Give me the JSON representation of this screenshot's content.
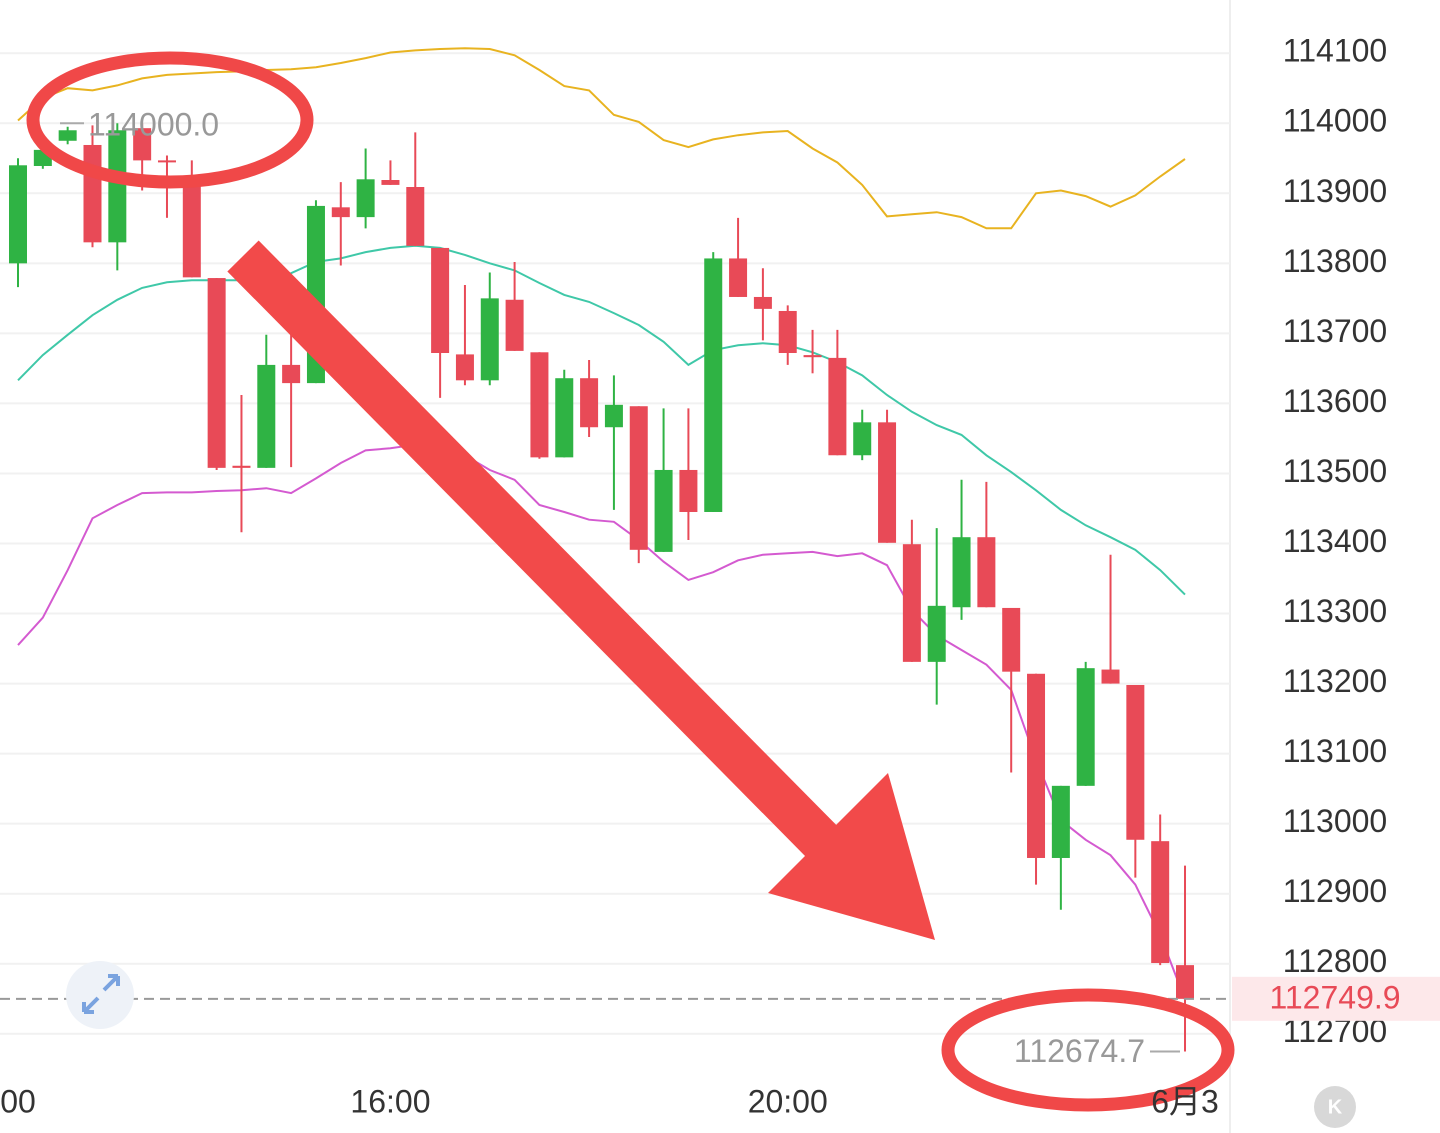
{
  "chart_data": {
    "type": "candlestick",
    "up_color": "#2fb344",
    "down_color": "#e84a57",
    "categories": [
      "00",
      null,
      null,
      null,
      null,
      null,
      null,
      null,
      null,
      null,
      null,
      null,
      null,
      null,
      null,
      "16:00",
      null,
      null,
      null,
      null,
      null,
      null,
      null,
      null,
      null,
      null,
      null,
      null,
      null,
      null,
      null,
      "20:00",
      null,
      null,
      null,
      null,
      null,
      null,
      null,
      null,
      null,
      null,
      null,
      null,
      null,
      null,
      null,
      "6月3"
    ],
    "open": [
      113800,
      113939,
      113975,
      113969,
      113830,
      113993,
      113947,
      113912,
      113779,
      113511,
      113508,
      113655,
      113629,
      113880,
      113866,
      113919,
      113909,
      113822,
      113670,
      113633,
      113748,
      113673,
      113523,
      113636,
      113566,
      113596,
      113388,
      113505,
      113445,
      113807,
      113752,
      113732,
      113669,
      113665,
      113526,
      113573,
      113399,
      113231,
      113309,
      113409,
      113308,
      113214,
      112951,
      113054,
      113220,
      113198,
      112975,
      112798
    ],
    "high": [
      113950,
      113965,
      113995,
      113997,
      114000,
      114000,
      113954,
      113947,
      113779,
      113612,
      113698,
      113705,
      113890,
      113916,
      113964,
      113947,
      113987,
      113822,
      113769,
      113787,
      113802,
      113673,
      113648,
      113662,
      113640,
      113596,
      113593,
      113593,
      113816,
      113865,
      113793,
      113740,
      113705,
      113705,
      113591,
      113591,
      113434,
      113422,
      113491,
      113488,
      113308,
      113214,
      113054,
      113231,
      113384,
      113198,
      113013,
      112940
    ],
    "low": [
      113766,
      113935,
      113970,
      113823,
      113790,
      113904,
      113865,
      113780,
      113505,
      113416,
      113508,
      113509,
      113629,
      113797,
      113850,
      113912,
      113825,
      113608,
      113626,
      113626,
      113675,
      113521,
      113523,
      113552,
      113448,
      113372,
      113388,
      113405,
      113445,
      113752,
      113690,
      113655,
      113643,
      113526,
      113519,
      113401,
      113231,
      113170,
      113291,
      113309,
      113073,
      112913,
      112877,
      113054,
      113200,
      112923,
      112798,
      112674.7
    ],
    "close": [
      113940,
      113962,
      113990,
      113830,
      113990,
      113947,
      113945,
      113780,
      113508,
      113508,
      113655,
      113629,
      113882,
      113866,
      113920,
      113912,
      113825,
      113672,
      113633,
      113750,
      113675,
      113523,
      113636,
      113566,
      113598,
      113391,
      113505,
      113445,
      113807,
      113752,
      113735,
      113672,
      113666,
      113526,
      113573,
      113401,
      113231,
      113311,
      113409,
      113309,
      113217,
      112951,
      113054,
      113222,
      113200,
      112977,
      112801,
      112749.9
    ],
    "bands": [
      {
        "color": "#e8b320",
        "values": [
          114004,
          114036,
          114050,
          114047,
          114054,
          114064,
          114069,
          114071,
          114073,
          114074,
          114076,
          114077,
          114080,
          114086,
          114093,
          114101,
          114104,
          114106,
          114107,
          114106,
          114097,
          114076,
          114053,
          114047,
          114012,
          114002,
          113976,
          113966,
          113977,
          113983,
          113987,
          113989,
          113964,
          113944,
          113912,
          113867,
          113870,
          113873,
          113866,
          113850,
          113850,
          113900,
          113904,
          113896,
          113881,
          113897,
          113924,
          113949
        ]
      },
      {
        "color": "#3fc8a8",
        "values": [
          113633,
          113669,
          113698,
          113726,
          113748,
          113765,
          113773,
          113776,
          113776,
          113776,
          113776,
          113786,
          113802,
          113807,
          113816,
          113822,
          113825,
          113822,
          113812,
          113800,
          113790,
          113772,
          113755,
          113745,
          113729,
          113712,
          113688,
          113655,
          113676,
          113683,
          113686,
          113683,
          113673,
          113659,
          113640,
          113612,
          113588,
          113569,
          113555,
          113526,
          113502,
          113476,
          113448,
          113426,
          113409,
          113391,
          113362,
          113327
        ]
      },
      {
        "color": "#d45ad0",
        "values": [
          113255,
          113294,
          113362,
          113436,
          113455,
          113472,
          113473,
          113473,
          113475,
          113476,
          113479,
          113472,
          113493,
          113515,
          113533,
          113536,
          113541,
          113548,
          113526,
          113505,
          113491,
          113455,
          113445,
          113434,
          113431,
          113405,
          113374,
          113348,
          113359,
          113376,
          113384,
          113386,
          113388,
          113382,
          113386,
          113369,
          113305,
          113269,
          113248,
          113227,
          113191,
          113091,
          113005,
          112977,
          112955,
          112913,
          112841,
          112749
        ]
      }
    ],
    "ylim": [
      112634,
      114176
    ],
    "yticks": [
      112700,
      112800,
      112900,
      113000,
      113100,
      113200,
      113300,
      113400,
      113500,
      113600,
      113700,
      113800,
      113900,
      114000,
      114100
    ],
    "grid": true,
    "last_price": 112749.9,
    "high_marker": {
      "value": 114000,
      "label": "114000.0"
    },
    "low_marker": 112674.7
  }
}
